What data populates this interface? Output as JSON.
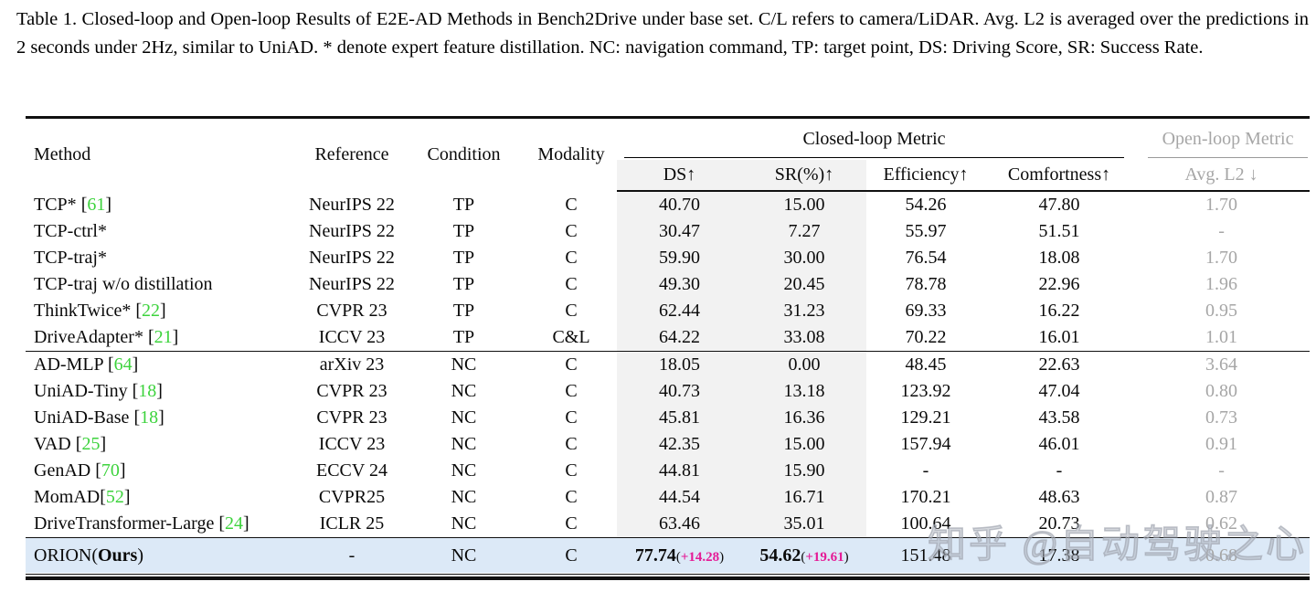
{
  "caption": "Table 1. Closed-loop and Open-loop Results of E2E-AD Methods in Bench2Drive under base set. C/L refers to camera/LiDAR. Avg. L2 is averaged over the predictions in 2 seconds under 2Hz, similar to UniAD. * denote expert feature distillation. NC: navigation command, TP: target point, DS: Driving Score, SR: Success Rate.",
  "watermark": "知乎 @自动驾驶之心",
  "colors": {
    "citation_green": "#3dd33d",
    "gain_pink": "#e51a96",
    "highlight_blue": "#dce9f7",
    "shaded_column": "#f2f2f2",
    "openloop_gray": "#a6a6a6"
  },
  "table": {
    "header": {
      "method": "Method",
      "reference": "Reference",
      "condition": "Condition",
      "modality": "Modality",
      "closed_loop": "Closed-loop Metric",
      "open_loop": "Open-loop Metric",
      "ds": "DS↑",
      "sr": "SR(%)↑",
      "efficiency": "Efficiency↑",
      "comfortness": "Comfortness↑",
      "avg_l2": "Avg. L2 ↓"
    },
    "brackets": {
      "open": "[",
      "close": "]"
    },
    "groups": [
      {
        "rows": [
          {
            "method": "TCP* ",
            "cite": "61",
            "reference": "NeurIPS 22",
            "condition": "TP",
            "modality": "C",
            "ds": "40.70",
            "sr": "15.00",
            "efficiency": "54.26",
            "comfortness": "47.80",
            "avg_l2": "1.70"
          },
          {
            "method": "TCP-ctrl*",
            "cite": null,
            "reference": "NeurIPS 22",
            "condition": "TP",
            "modality": "C",
            "ds": "30.47",
            "sr": "7.27",
            "efficiency": "55.97",
            "comfortness": "51.51",
            "avg_l2": "-"
          },
          {
            "method": "TCP-traj*",
            "cite": null,
            "reference": "NeurIPS 22",
            "condition": "TP",
            "modality": "C",
            "ds": "59.90",
            "sr": "30.00",
            "efficiency": "76.54",
            "comfortness": "18.08",
            "avg_l2": "1.70"
          },
          {
            "method": "TCP-traj w/o distillation",
            "cite": null,
            "reference": "NeurIPS 22",
            "condition": "TP",
            "modality": "C",
            "ds": "49.30",
            "sr": "20.45",
            "efficiency": "78.78",
            "comfortness": "22.96",
            "avg_l2": "1.96"
          },
          {
            "method": "ThinkTwice* ",
            "cite": "22",
            "reference": "CVPR 23",
            "condition": "TP",
            "modality": "C",
            "ds": "62.44",
            "sr": "31.23",
            "efficiency": "69.33",
            "comfortness": "16.22",
            "avg_l2": "0.95"
          },
          {
            "method": "DriveAdapter* ",
            "cite": "21",
            "reference": "ICCV 23",
            "condition": "TP",
            "modality": "C&L",
            "ds": "64.22",
            "sr": "33.08",
            "efficiency": "70.22",
            "comfortness": "16.01",
            "avg_l2": "1.01"
          }
        ]
      },
      {
        "rows": [
          {
            "method": "AD-MLP ",
            "cite": "64",
            "reference": "arXiv 23",
            "condition": "NC",
            "modality": "C",
            "ds": "18.05",
            "sr": "0.00",
            "efficiency": "48.45",
            "comfortness": "22.63",
            "avg_l2": "3.64"
          },
          {
            "method": "UniAD-Tiny ",
            "cite": "18",
            "reference": "CVPR 23",
            "condition": "NC",
            "modality": "C",
            "ds": "40.73",
            "sr": "13.18",
            "efficiency": "123.92",
            "comfortness": "47.04",
            "avg_l2": "0.80"
          },
          {
            "method": "UniAD-Base ",
            "cite": "18",
            "reference": "CVPR 23",
            "condition": "NC",
            "modality": "C",
            "ds": "45.81",
            "sr": "16.36",
            "efficiency": "129.21",
            "comfortness": "43.58",
            "avg_l2": "0.73"
          },
          {
            "method": "VAD ",
            "cite": "25",
            "reference": "ICCV 23",
            "condition": "NC",
            "modality": "C",
            "ds": "42.35",
            "sr": "15.00",
            "efficiency": "157.94",
            "comfortness": "46.01",
            "avg_l2": "0.91"
          },
          {
            "method": "GenAD ",
            "cite": "70",
            "reference": "ECCV 24",
            "condition": "NC",
            "modality": "C",
            "ds": "44.81",
            "sr": "15.90",
            "efficiency": "-",
            "comfortness": "-",
            "avg_l2": "-"
          },
          {
            "method": "MomAD",
            "cite": "52",
            "reference": "CVPR25",
            "condition": "NC",
            "modality": "C",
            "ds": "44.54",
            "sr": "16.71",
            "efficiency": "170.21",
            "comfortness": "48.63",
            "avg_l2": "0.87"
          },
          {
            "method": "DriveTransformer-Large ",
            "cite": "24",
            "reference": "ICLR 25",
            "condition": "NC",
            "modality": "C",
            "ds": "63.46",
            "sr": "35.01",
            "efficiency": "100.64",
            "comfortness": "20.73",
            "avg_l2": "0.62"
          }
        ]
      }
    ],
    "highlight": {
      "method_pre": "ORION(",
      "method_bold": "Ours",
      "method_post": ")",
      "reference": "-",
      "condition": "NC",
      "modality": "C",
      "ds": "77.74",
      "ds_gain": "+14.28",
      "sr": "54.62",
      "sr_gain": "+19.61",
      "efficiency": "151.48",
      "comfortness": "17.38",
      "avg_l2": "0.68",
      "paren_open": "(",
      "paren_close": ")"
    }
  }
}
